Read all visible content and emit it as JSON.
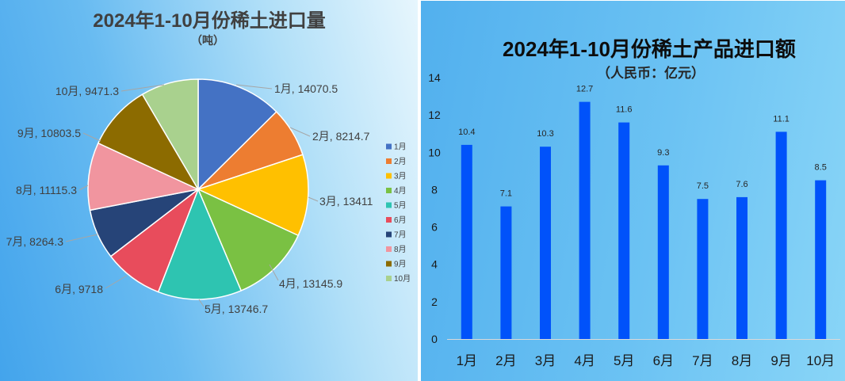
{
  "chart_data": [
    {
      "type": "pie",
      "title": "2024年1-10月份稀土进口量",
      "subtitle": "（吨）",
      "categories": [
        "1月",
        "2月",
        "3月",
        "4月",
        "5月",
        "6月",
        "7月",
        "8月",
        "9月",
        "10月"
      ],
      "values": [
        14070.5,
        8214.7,
        13411,
        13145.9,
        13746.7,
        9718,
        8264.3,
        11115.3,
        10803.5,
        9471.3
      ],
      "colors": [
        "#4472C4",
        "#ED7D31",
        "#FFC000",
        "#7AC143",
        "#2EC4B1",
        "#E84C5C",
        "#264478",
        "#F1959F",
        "#8C6B00",
        "#A9D18E"
      ],
      "legend_position": "right"
    },
    {
      "type": "bar",
      "title": "2024年1-10月份稀土产品进口额",
      "subtitle": "（人民币：亿元）",
      "categories": [
        "1月",
        "2月",
        "3月",
        "4月",
        "5月",
        "6月",
        "7月",
        "8月",
        "9月",
        "10月"
      ],
      "values": [
        10.4,
        7.1,
        10.3,
        12.7,
        11.6,
        9.3,
        7.5,
        7.6,
        11.1,
        8.5
      ],
      "ylim": [
        0,
        14
      ],
      "yticks": [
        0,
        2,
        4,
        6,
        8,
        10,
        12,
        14
      ],
      "bar_color": "#0052FA",
      "grid": false
    }
  ]
}
